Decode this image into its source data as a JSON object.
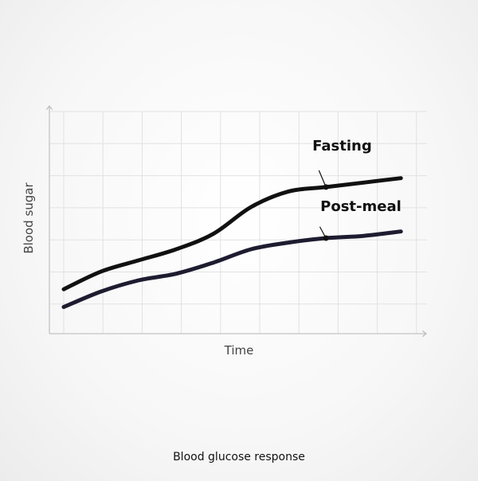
{
  "chart_data": {
    "type": "line",
    "title": "Blood glucose response",
    "xlabel": "Time",
    "ylabel": "Blood sugar",
    "x": [
      0,
      1,
      2,
      3,
      4,
      5,
      6,
      7,
      8,
      9
    ],
    "xlim": [
      0,
      9.4
    ],
    "ylim": [
      0,
      10
    ],
    "grid": true,
    "legend": "inline labels",
    "series": [
      {
        "name": "Fasting",
        "color": "#111111",
        "values": [
          2.0,
          2.8,
          3.3,
          3.8,
          4.5,
          5.7,
          6.4,
          6.6,
          6.8,
          7.0
        ]
      },
      {
        "name": "Post-meal",
        "color": "#1e1c30",
        "values": [
          1.2,
          1.9,
          2.4,
          2.7,
          3.2,
          3.8,
          4.1,
          4.3,
          4.4,
          4.6
        ]
      }
    ]
  }
}
